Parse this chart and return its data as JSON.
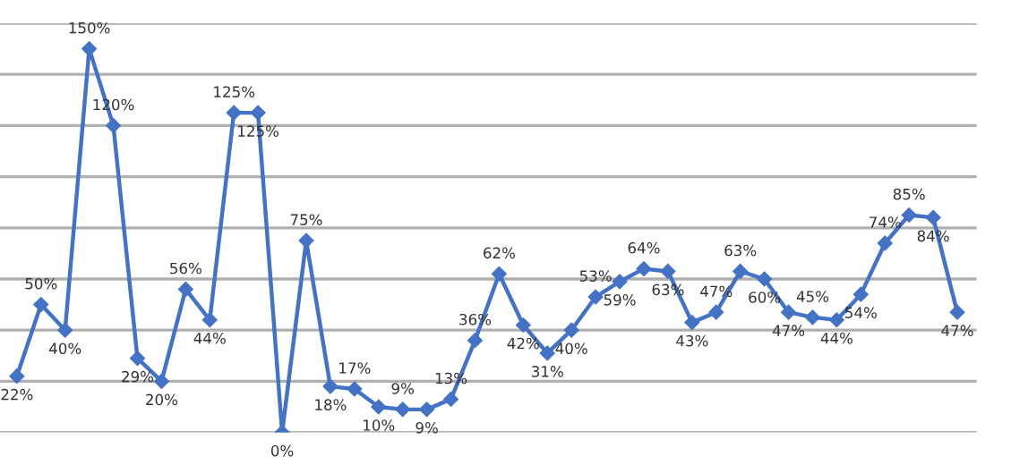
{
  "chart_data": {
    "type": "line",
    "categories": [
      null,
      null,
      null,
      null,
      null,
      null,
      null,
      null,
      null,
      null,
      null,
      null,
      null,
      null,
      null,
      null,
      null,
      null,
      null,
      null,
      null,
      null,
      null,
      null,
      null,
      null,
      null,
      null,
      null,
      null,
      null,
      null,
      null,
      null,
      null,
      null,
      null,
      null,
      null,
      null
    ],
    "series": [
      {
        "color": "#4472c4",
        "values": [
          22,
          50,
          40,
          150,
          120,
          29,
          20,
          56,
          44,
          125,
          125,
          0,
          75,
          18,
          17,
          10,
          9,
          9,
          13,
          36,
          62,
          42,
          31,
          40,
          53,
          59,
          64,
          63,
          43,
          47,
          63,
          60,
          47,
          45,
          44,
          54,
          74,
          85,
          84,
          47
        ],
        "value_labels": [
          "22%",
          "50%",
          "40%",
          "150%",
          "120%",
          "29%",
          "20%",
          "56%",
          "44%",
          "125%",
          "125%",
          "0%",
          "75%",
          "18%",
          "17%",
          "10%",
          "9%",
          "9%",
          "13%",
          "36%",
          "62%",
          "42%",
          "31%",
          "40%",
          "53%",
          "59%",
          "64%",
          "63%",
          "43%",
          "47%",
          "63%",
          "60%",
          "47%",
          "45%",
          "44%",
          "54%",
          "74%",
          "85%",
          "84%",
          "47%"
        ]
      }
    ],
    "ylim": [
      0,
      160
    ],
    "yticks": [
      {
        "value": 0,
        "label": null
      },
      {
        "value": 20,
        "label": null
      },
      {
        "value": 40,
        "label": null
      },
      {
        "value": 60,
        "label": null
      },
      {
        "value": 80,
        "label": null
      },
      {
        "value": 100,
        "label": null
      },
      {
        "value": 120,
        "label": null
      },
      {
        "value": 140,
        "label": null
      },
      {
        "value": 160,
        "label": null
      }
    ],
    "grid": "y",
    "marker": "diamond",
    "line_style": "solid"
  }
}
